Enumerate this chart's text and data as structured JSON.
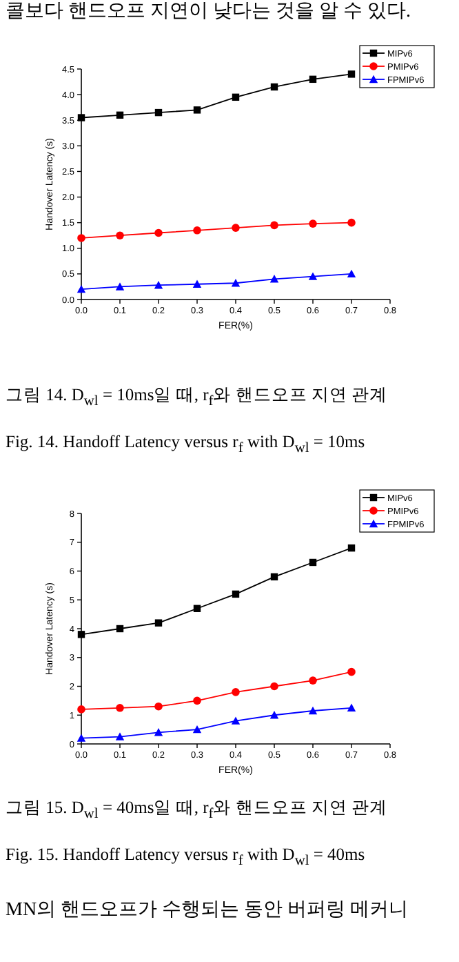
{
  "chart_data": [
    {
      "type": "line",
      "x": [
        0,
        0.1,
        0.2,
        0.3,
        0.4,
        0.5,
        0.6,
        0.7
      ],
      "xlabel": "FER(%)",
      "ylabel": "Handover Latency (s)",
      "xlim": [
        0,
        0.8
      ],
      "xticks": [
        {
          "value": 0,
          "label": "0.0"
        },
        0.1,
        0.2,
        0.3,
        0.4,
        0.5,
        0.6,
        0.7,
        0.8
      ],
      "ylim": [
        0,
        4.5
      ],
      "yticks": [
        {
          "value": 0,
          "label": "0.0"
        },
        0.5,
        {
          "value": 1,
          "label": "1.0"
        },
        1.5,
        {
          "value": 2,
          "label": "2.0"
        },
        2.5,
        {
          "value": 3,
          "label": "3.0"
        },
        3.5,
        {
          "value": 4,
          "label": "4.0"
        },
        4.5
      ],
      "legend": "top right",
      "grid": false,
      "line_style": "solid",
      "series": [
        {
          "name": "MIPv6",
          "color": "#000000",
          "marker": "square",
          "values": [
            3.55,
            3.6,
            3.65,
            3.7,
            3.95,
            4.15,
            4.3,
            4.4
          ]
        },
        {
          "name": "PMIPv6",
          "color": "#ff0000",
          "marker": "circle",
          "values": [
            1.2,
            1.25,
            1.3,
            1.35,
            1.4,
            1.45,
            1.48,
            1.5
          ]
        },
        {
          "name": "FPMIPv6",
          "color": "#0000ff",
          "marker": "triangle",
          "values": [
            0.2,
            0.25,
            0.28,
            0.3,
            0.32,
            0.4,
            0.45,
            0.5
          ]
        }
      ],
      "annotations": [
        "콜보다 핸드오프 지연이 낮다는 것을 알 수 있다.",
        "그림 14. D$_{wl}$ = 10ms일 때, r$_{f}$와 핸드오프 지연 관계",
        "Fig. 14. Handoff Latency versus r$_{f}$ with D$_{wl}$ = 10ms"
      ]
    },
    {
      "type": "line",
      "x": [
        0,
        0.1,
        0.2,
        0.3,
        0.4,
        0.5,
        0.6,
        0.7
      ],
      "xlabel": "FER(%)",
      "ylabel": "Handover Latency (s)",
      "xlim": [
        0,
        0.8
      ],
      "xticks": [
        {
          "value": 0,
          "label": "0.0"
        },
        0.1,
        0.2,
        0.3,
        0.4,
        0.5,
        0.6,
        0.7,
        0.8
      ],
      "ylim": [
        0,
        8
      ],
      "yticks": [
        0,
        1,
        2,
        3,
        4,
        5,
        6,
        7,
        8
      ],
      "legend": "top right",
      "grid": false,
      "line_style": "solid",
      "series": [
        {
          "name": "MIPv6",
          "color": "#000000",
          "marker": "square",
          "values": [
            3.8,
            4.0,
            4.2,
            4.7,
            5.2,
            5.8,
            6.3,
            6.8
          ]
        },
        {
          "name": "PMIPv6",
          "color": "#ff0000",
          "marker": "circle",
          "values": [
            1.2,
            1.25,
            1.3,
            1.5,
            1.8,
            2.0,
            2.2,
            2.5
          ]
        },
        {
          "name": "FPMIPv6",
          "color": "#0000ff",
          "marker": "triangle",
          "values": [
            0.2,
            0.25,
            0.4,
            0.5,
            0.8,
            1.0,
            1.15,
            1.25
          ]
        }
      ],
      "annotations": [
        "그림 15. D$_{wl}$ = 40ms일 때, r$_{f}$와 핸드오프 지연 관계",
        "Fig. 15. Handoff Latency versus r$_{f}$ with D$_{wl}$ = 40ms",
        "MN의 핸드오프가 수행되는 동안 버퍼링 메커니"
      ]
    }
  ]
}
